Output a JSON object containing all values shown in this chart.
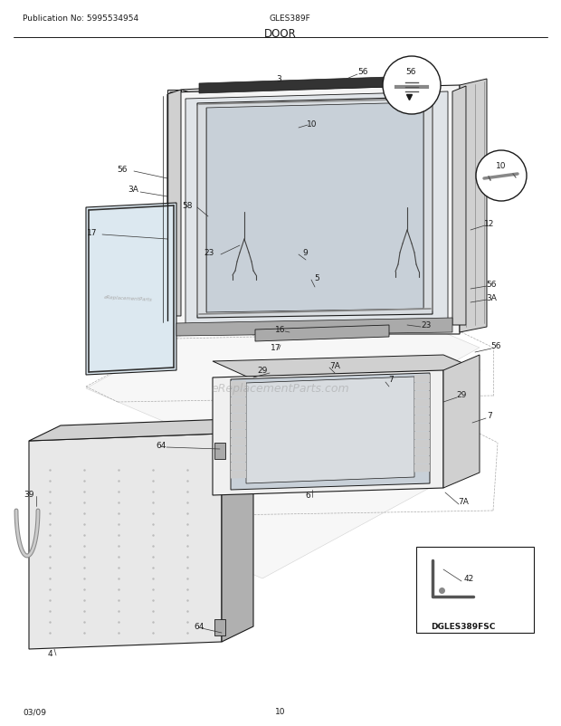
{
  "title": "DOOR",
  "pub_no": "Publication No: 5995534954",
  "model": "GLES389F",
  "date": "03/09",
  "page": "10",
  "diagram_label": "DGLES389FSC",
  "bg_color": "#ffffff",
  "line_color": "#1a1a1a",
  "text_color": "#1a1a1a",
  "watermark": "eReplacementParts.com",
  "figsize": [
    6.2,
    8.03
  ],
  "dpi": 100
}
